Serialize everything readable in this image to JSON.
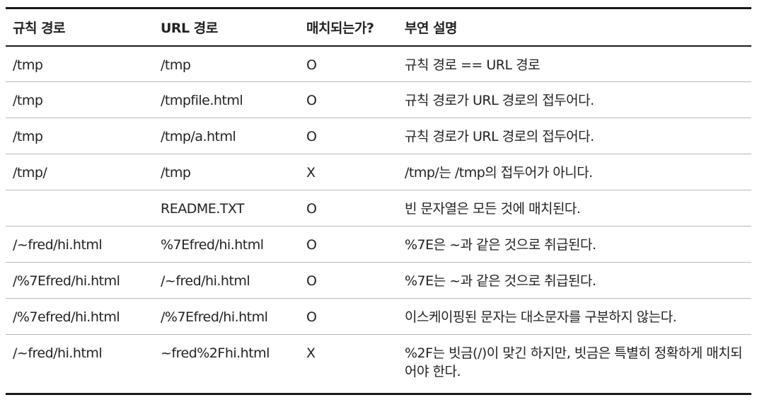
{
  "table": {
    "headers": [
      "규칙 경로",
      "URL 경로",
      "매치되는가?",
      "부연 설명"
    ],
    "rows": [
      [
        "/tmp",
        "/tmp",
        "O",
        "규칙 경로 == URL 경로"
      ],
      [
        "/tmp",
        "/tmpfile.html",
        "O",
        "규칙 경로가 URL 경로의 접두어다."
      ],
      [
        "/tmp",
        "/tmp/a.html",
        "O",
        "규칙 경로가 URL 경로의 접두어다."
      ],
      [
        "/tmp/",
        "/tmp",
        "X",
        "/tmp/는 /tmp의 접두어가 아니다."
      ],
      [
        "",
        "README.TXT",
        "O",
        "빈 문자열은 모든 것에 매치된다."
      ],
      [
        "/~fred/hi.html",
        "%7Efred/hi.html",
        "O",
        "%7E은 ~과 같은 것으로 취급된다."
      ],
      [
        "/%7Efred/hi.html",
        "/~fred/hi.html",
        "O",
        "%7E는 ~과 같은 것으로 취급된다."
      ],
      [
        "/%7efred/hi.html",
        "/%7Efred/hi.html",
        "O",
        "이스케이핑된 문자는 대소문자를 구분하지 않는다."
      ],
      [
        "/~fred/hi.html",
        "~fred%2Fhi.html",
        "X",
        "%2F는 빗금(/)이 맞긴 하지만, 빗금은 특별히 정확하게 매치되어야 한다."
      ]
    ]
  }
}
